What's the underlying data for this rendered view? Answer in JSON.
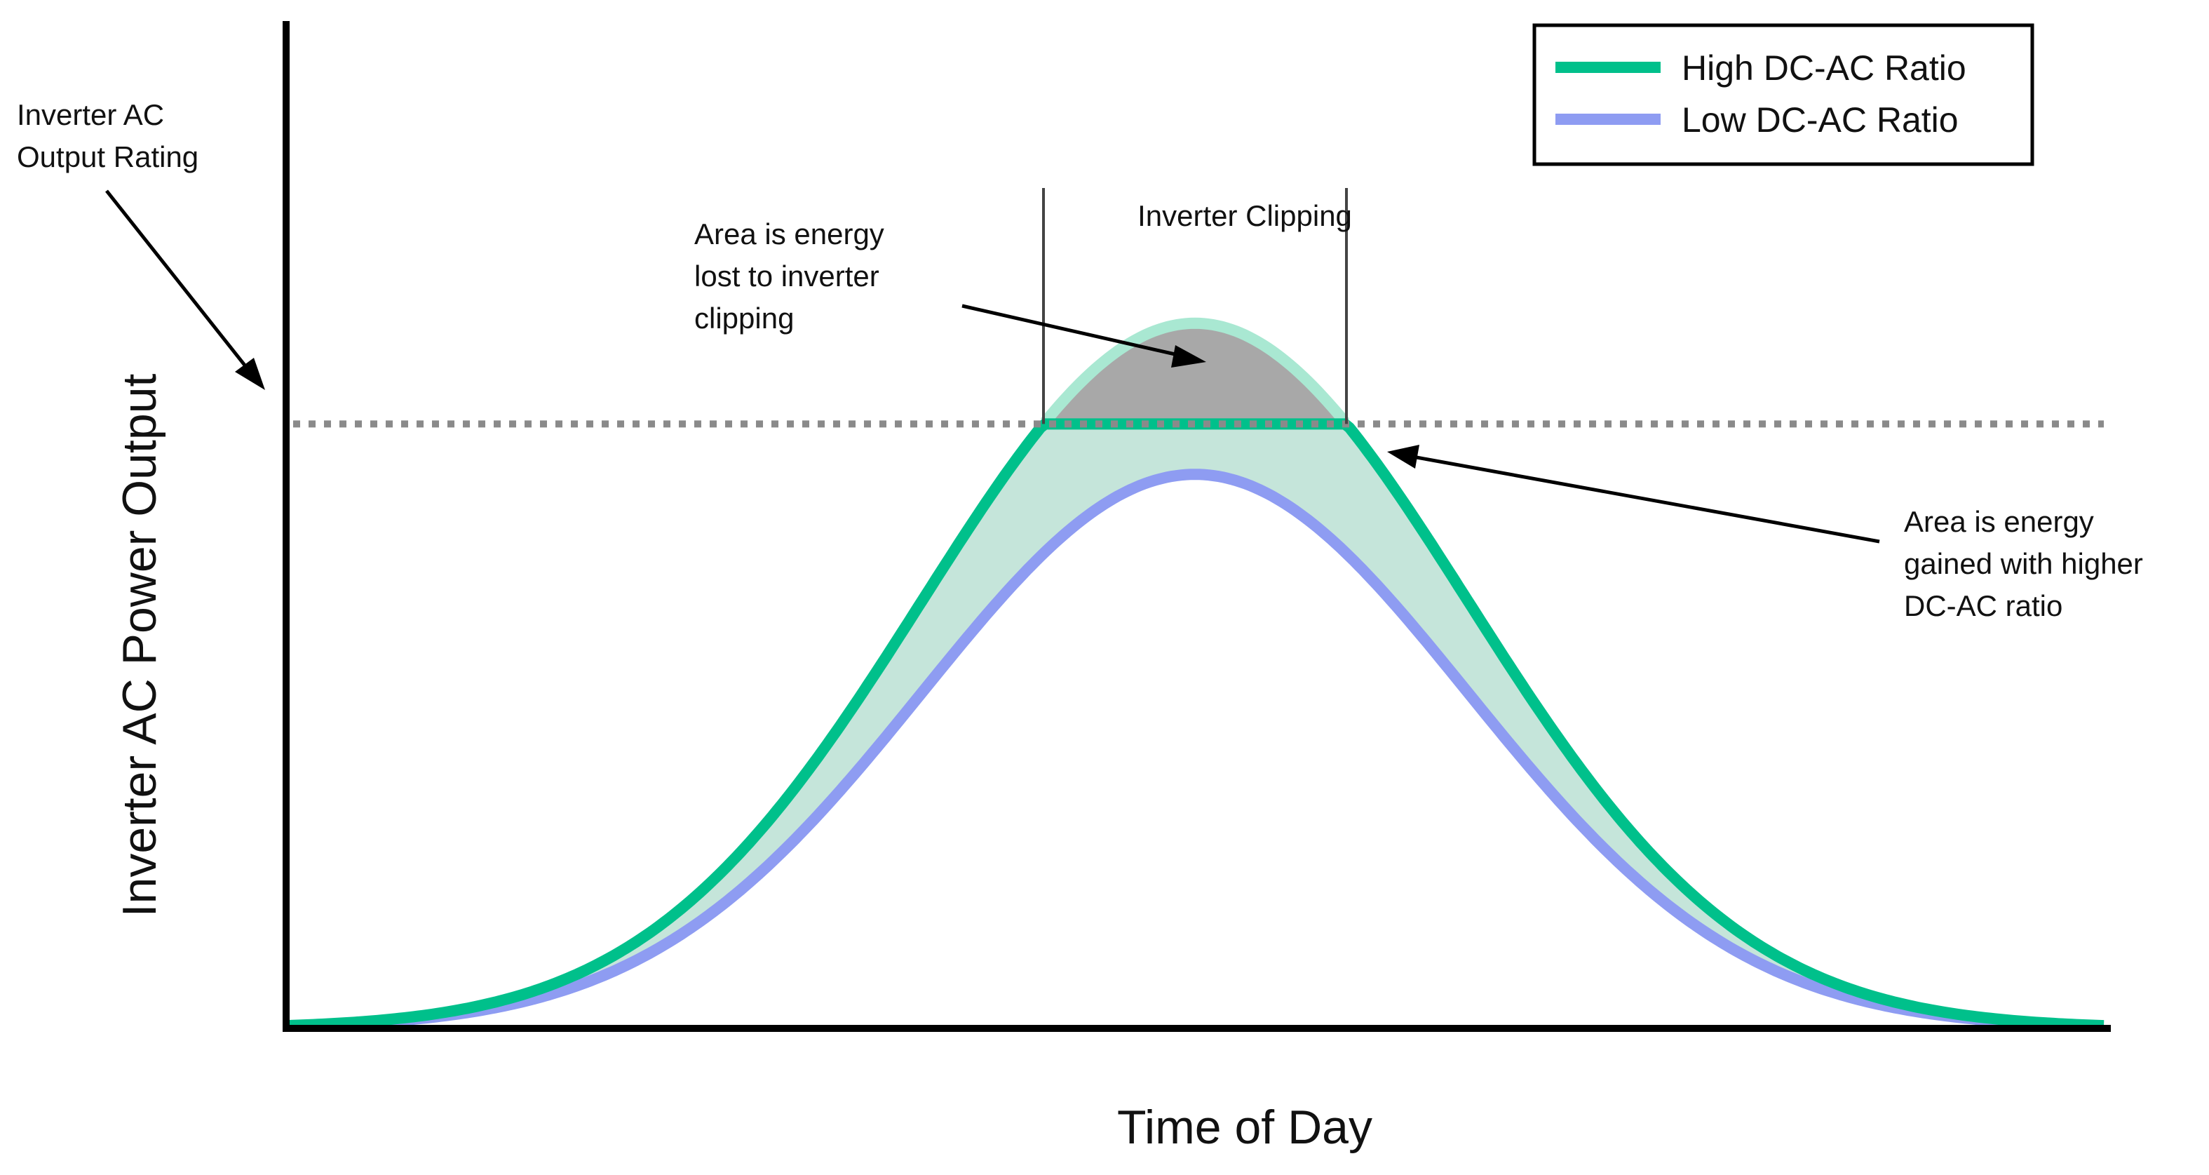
{
  "chart_data": {
    "type": "line",
    "title": "",
    "xlabel": "Time of Day",
    "ylabel": "Inverter AC Power Output",
    "x_range": [
      0,
      24
    ],
    "y_range": [
      0,
      100
    ],
    "grid": false,
    "legend_position": "top-right",
    "series": [
      {
        "name": "High DC-AC Ratio",
        "color": "#00c08b",
        "peak_time": 12,
        "peak_value": 70,
        "clipped_at": 60,
        "clipping_window": [
          10,
          14
        ]
      },
      {
        "name": "Low DC-AC Ratio",
        "color": "#8e9cf2",
        "peak_time": 12,
        "peak_value": 55
      }
    ],
    "inverter_rating": 60,
    "clipping_region_label": "Inverter Clipping",
    "annotations": {
      "rating": [
        "Inverter AC",
        "Output Rating"
      ],
      "lost": [
        "Area is energy",
        "lost to inverter",
        "clipping"
      ],
      "gained": [
        "Area is energy",
        "gained with higher",
        "DC-AC ratio"
      ]
    }
  },
  "colors": {
    "high": "#00c08b",
    "high_clipped": "#a9e8d2",
    "gain_fill": "#c5e5da",
    "low": "#8e9cf2",
    "lost_fill": "#a8a8a8",
    "axis": "#000000",
    "rating_line": "#8a8a8a"
  }
}
